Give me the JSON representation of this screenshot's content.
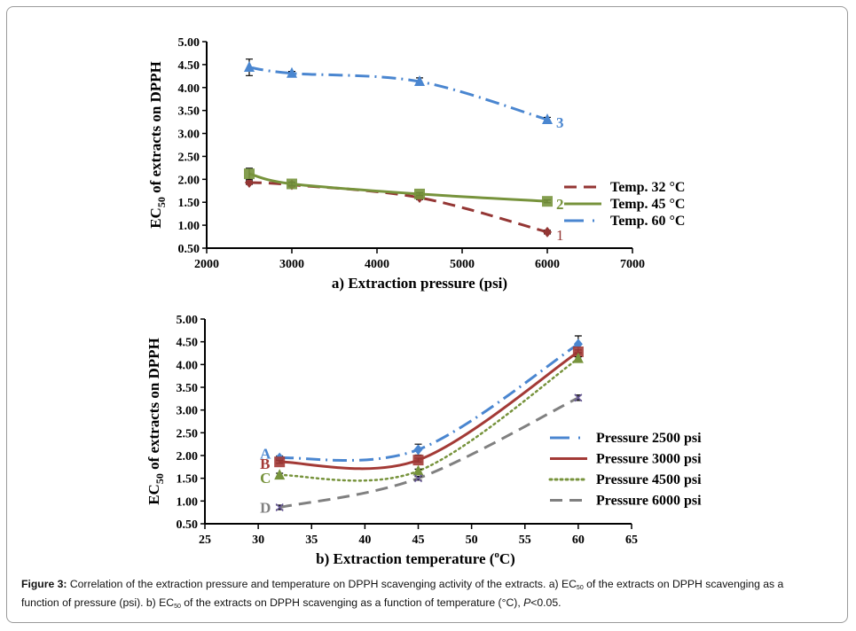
{
  "chart_data": [
    {
      "type": "line",
      "panel": "a",
      "title": "",
      "xlabel": "a)  Extraction pressure (psi)",
      "ylabel": "EC50 of extracts on DPPH",
      "xlim": [
        2000,
        7000
      ],
      "ylim": [
        0.5,
        5.0
      ],
      "xticks": [
        2000,
        3000,
        4000,
        5000,
        6000,
        7000
      ],
      "yticks": [
        0.5,
        1.0,
        1.5,
        2.0,
        2.5,
        3.0,
        3.5,
        4.0,
        4.5,
        5.0
      ],
      "ytick_labels": [
        "0.50",
        "1.00",
        "1.50",
        "2.00",
        "2.50",
        "3.00",
        "3.50",
        "4.00",
        "4.50",
        "5.00"
      ],
      "xtick_labels": [
        "2000",
        "3000",
        "4000",
        "5000",
        "6000",
        "7000"
      ],
      "grid": false,
      "legend_position": "right",
      "x": [
        2500,
        3000,
        4500,
        6000
      ],
      "series": [
        {
          "name": "Temp. 32 °C",
          "values": [
            1.93,
            1.88,
            1.6,
            0.85
          ],
          "color": "#943634",
          "style": "dashed",
          "marker": "diamond",
          "end_label": "1",
          "error_bars": [
            0.04,
            0.04,
            0.04,
            0.04
          ]
        },
        {
          "name": "Temp. 45 °C",
          "values": [
            2.12,
            1.9,
            1.68,
            1.52
          ],
          "color": "#77933c",
          "style": "solid",
          "marker": "square",
          "end_label": "2",
          "error_bars": [
            0.12,
            0.04,
            0.03,
            0.03
          ]
        },
        {
          "name": "Temp. 60 °C",
          "values": [
            4.44,
            4.31,
            4.13,
            3.3
          ],
          "color": "#4a86d0",
          "style": "dashdot",
          "marker": "triangle",
          "end_label": "3",
          "error_bars": [
            0.18,
            0.04,
            0.08,
            0.05
          ]
        }
      ]
    },
    {
      "type": "line",
      "panel": "b",
      "title": "",
      "xlabel": "b) Extraction temperature  (oC)",
      "ylabel": "EC50 of extracts on DPPH",
      "xlim": [
        25,
        65
      ],
      "ylim": [
        0.5,
        5.0
      ],
      "xticks": [
        25,
        30,
        35,
        40,
        45,
        50,
        55,
        60,
        65
      ],
      "xtick_labels": [
        "25",
        "30",
        "35",
        "40",
        "45",
        "50",
        "55",
        "60",
        "65"
      ],
      "yticks": [
        0.5,
        1.0,
        1.5,
        2.0,
        2.5,
        3.0,
        3.5,
        4.0,
        4.5,
        5.0
      ],
      "ytick_labels": [
        "0.50",
        "1.00",
        "1.50",
        "2.00",
        "2.50",
        "3.00",
        "3.50",
        "4.00",
        "4.50",
        "5.00"
      ],
      "grid": false,
      "legend_position": "right",
      "x": [
        32,
        45,
        60
      ],
      "series": [
        {
          "name": "Pressure 2500 psi",
          "values": [
            1.95,
            2.13,
            4.45
          ],
          "color": "#4a86d0",
          "style": "dashdot",
          "marker": "diamond",
          "start_label": "A",
          "error_bars": [
            0.04,
            0.12,
            0.18
          ]
        },
        {
          "name": "Pressure 3000 psi",
          "values": [
            1.86,
            1.9,
            4.28
          ],
          "color": "#a33a36",
          "style": "solid",
          "marker": "square",
          "start_label": "B",
          "error_bars": [
            0.03,
            0.04,
            0.04
          ]
        },
        {
          "name": "Pressure 4500 psi",
          "values": [
            1.57,
            1.66,
            4.13
          ],
          "color": "#77933c",
          "style": "dotted",
          "marker": "triangle",
          "start_label": "C",
          "error_bars": [
            0.04,
            0.04,
            0.04
          ]
        },
        {
          "name": "Pressure 6000 psi",
          "values": [
            0.86,
            1.5,
            3.27
          ],
          "color": "#808080",
          "style": "dashed",
          "marker": "x",
          "start_label": "D",
          "error_bars": [
            0.05,
            0.04,
            0.06
          ]
        }
      ]
    }
  ],
  "caption": {
    "label": "Figure 3:",
    "line1_a": " Correlation of the extraction pressure and temperature on DPPH scavenging activity of the extracts. a) EC",
    "sub": "50",
    "line1_b": " of the extracts on DPPH scavenging as a",
    "line2_a": "function of pressure (psi). b) EC",
    "line2_b": " of the extracts on DPPH scavenging as a function of temperature (°C), ",
    "p_italic": "P",
    "line2_c": "<0.05."
  },
  "ylabel_parts": {
    "pre": "EC",
    "sub": "50",
    "post": " of extracts on DPPH"
  }
}
